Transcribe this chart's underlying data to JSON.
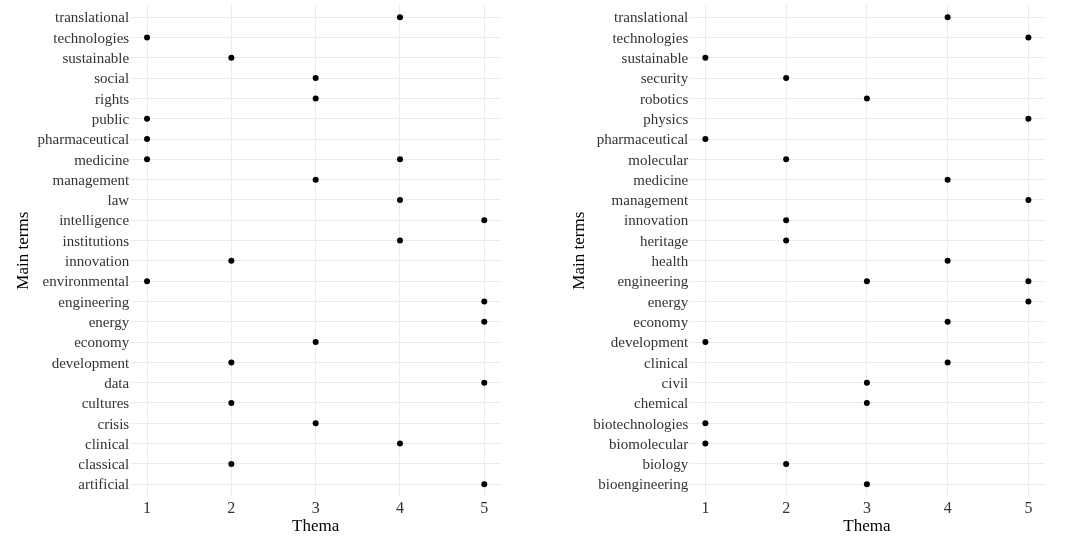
{
  "chart_data": [
    {
      "type": "scatter",
      "orientation": "horizontal",
      "xlabel": "Thema",
      "ylabel": "Main terms",
      "xlim": [
        0.8,
        5.2
      ],
      "xticks": [
        1,
        2,
        3,
        4,
        5
      ],
      "grid": true,
      "marker": "circle",
      "categories": [
        "translational",
        "technologies",
        "sustainable",
        "social",
        "rights",
        "public",
        "pharmaceutical",
        "medicine",
        "management",
        "law",
        "intelligence",
        "institutions",
        "innovation",
        "environmental",
        "engineering",
        "energy",
        "economy",
        "development",
        "data",
        "cultures",
        "crisis",
        "clinical",
        "classical",
        "artificial"
      ],
      "series": [
        {
          "color": "#000000",
          "values": [
            4,
            1,
            2,
            3,
            3,
            1,
            1,
            1,
            3,
            4,
            5,
            4,
            2,
            1,
            5,
            5,
            3,
            2,
            5,
            2,
            3,
            4,
            2,
            5
          ]
        },
        {
          "color": "#000000",
          "values": [
            null,
            null,
            null,
            null,
            null,
            null,
            null,
            4,
            null,
            null,
            null,
            null,
            null,
            null,
            null,
            null,
            null,
            null,
            null,
            null,
            null,
            null,
            null,
            null
          ]
        }
      ]
    },
    {
      "type": "scatter",
      "orientation": "horizontal",
      "xlabel": "Thema",
      "ylabel": "Main terms",
      "xlim": [
        0.8,
        5.2
      ],
      "xticks": [
        1,
        2,
        3,
        4,
        5
      ],
      "grid": true,
      "marker": "circle",
      "categories": [
        "translational",
        "technologies",
        "sustainable",
        "security",
        "robotics",
        "physics",
        "pharmaceutical",
        "molecular",
        "medicine",
        "management",
        "innovation",
        "heritage",
        "health",
        "engineering",
        "energy",
        "economy",
        "development",
        "clinical",
        "civil",
        "chemical",
        "biotechnologies",
        "biomolecular",
        "biology",
        "bioengineering"
      ],
      "series": [
        {
          "color": "#000000",
          "values": [
            4,
            5,
            1,
            2,
            3,
            5,
            1,
            2,
            4,
            5,
            2,
            2,
            4,
            3,
            5,
            4,
            1,
            4,
            3,
            3,
            1,
            1,
            2,
            3
          ]
        },
        {
          "color": "#000000",
          "values": [
            null,
            null,
            null,
            null,
            null,
            null,
            null,
            null,
            null,
            null,
            null,
            null,
            null,
            5,
            null,
            null,
            null,
            null,
            null,
            null,
            null,
            null,
            null,
            null
          ]
        }
      ]
    }
  ]
}
